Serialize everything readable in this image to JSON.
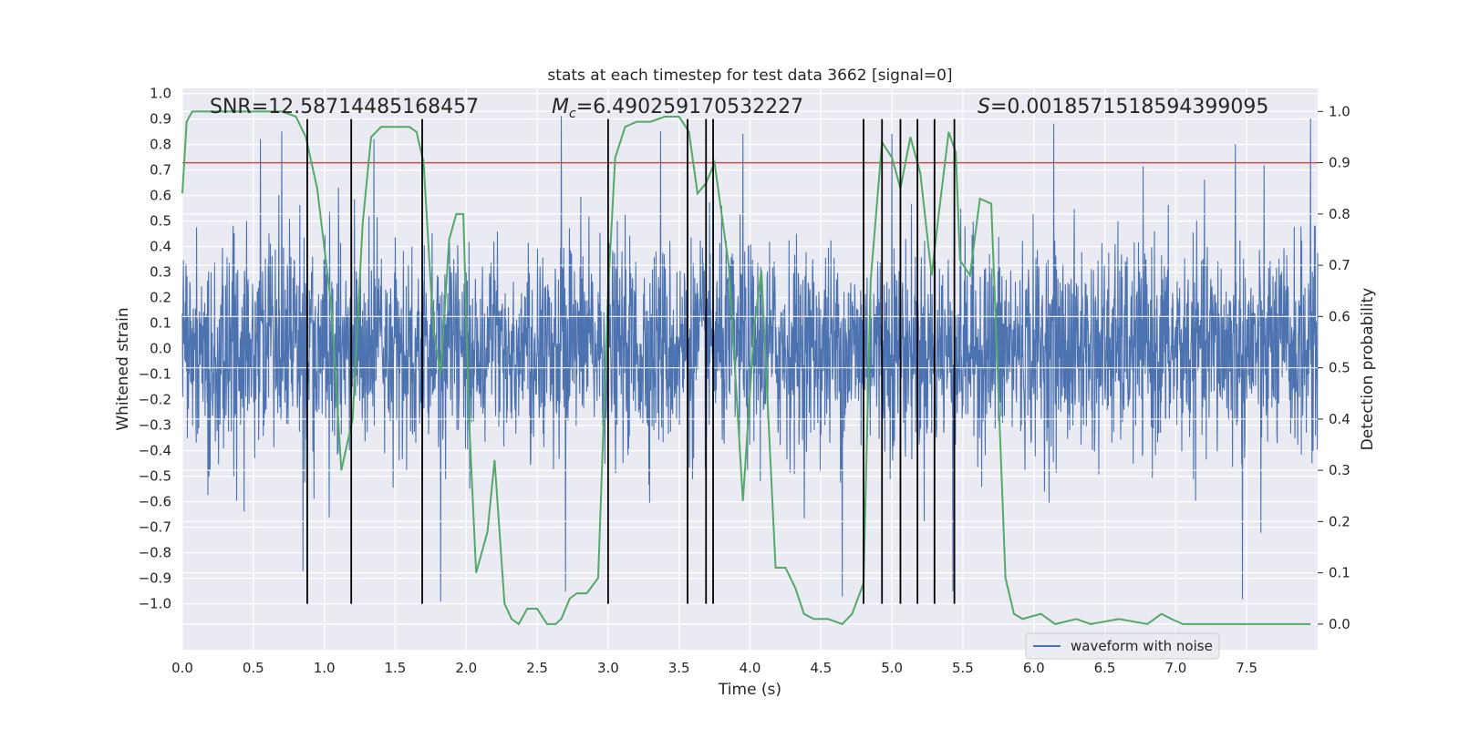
{
  "chart_data": {
    "type": "line",
    "title": "stats at each timestep for test data 3662 [signal=0]",
    "xlabel": "Time (s)",
    "ylabel": "Whitened strain",
    "y2label": "Detection probability",
    "xlim": [
      0,
      8
    ],
    "ylim": [
      -1.18,
      1.02
    ],
    "y2lim": [
      -0.05,
      1.045
    ],
    "xticks": [
      "0.0",
      "0.5",
      "1.0",
      "1.5",
      "2.0",
      "2.5",
      "3.0",
      "3.5",
      "4.0",
      "4.5",
      "5.0",
      "5.5",
      "6.0",
      "6.5",
      "7.0",
      "7.5"
    ],
    "yticks": [
      "1.0",
      "0.9",
      "0.8",
      "0.7",
      "0.6",
      "0.5",
      "0.4",
      "0.3",
      "0.2",
      "0.1",
      "0.0",
      "−0.1",
      "−0.2",
      "−0.3",
      "−0.4",
      "−0.5",
      "−0.6",
      "−0.7",
      "−0.8",
      "−0.9",
      "−1.0"
    ],
    "y2ticks": [
      "0.0",
      "0.1",
      "0.2",
      "0.3",
      "0.4",
      "0.5",
      "0.6",
      "0.7",
      "0.8",
      "0.9",
      "1.0"
    ],
    "grid": true,
    "legend_position": "lower-right",
    "annotations": {
      "snr": "SNR=12.58714485168457",
      "mc_symbol": "M",
      "mc_sub": "c",
      "mc_value": "=6.490259170532227",
      "s_symbol": "S",
      "s_value": "=0.0018571518594399095"
    },
    "series": [
      {
        "name": "waveform with noise",
        "axis": "left",
        "color": "#4c72b0",
        "description_level": "dense noise, bulk within about ±0.4 with spikes up to ±1.0",
        "spikes": [
          [
            0.55,
            0.82
          ],
          [
            0.7,
            0.85
          ],
          [
            0.85,
            -0.87
          ],
          [
            1.1,
            0.63
          ],
          [
            1.35,
            0.82
          ],
          [
            1.82,
            -0.99
          ],
          [
            2.67,
            0.91
          ],
          [
            2.7,
            -0.95
          ],
          [
            3.37,
            0.85
          ],
          [
            3.95,
            0.84
          ],
          [
            4.65,
            -0.97
          ],
          [
            5.0,
            0.84
          ],
          [
            5.43,
            -0.95
          ],
          [
            6.14,
            0.88
          ],
          [
            7.42,
            0.8
          ],
          [
            7.47,
            -0.98
          ],
          [
            7.95,
            0.9
          ],
          [
            7.6,
            -0.72
          ]
        ]
      },
      {
        "name": "",
        "axis": "right",
        "color": "#55a868",
        "x": [
          0,
          0.03,
          0.07,
          0.12,
          0.2,
          0.3,
          0.4,
          0.5,
          0.6,
          0.7,
          0.8,
          0.87,
          0.95,
          1.05,
          1.12,
          1.2,
          1.27,
          1.33,
          1.4,
          1.5,
          1.6,
          1.65,
          1.7,
          1.77,
          1.82,
          1.88,
          1.93,
          1.98,
          2.02,
          2.07,
          2.15,
          2.2,
          2.27,
          2.32,
          2.37,
          2.43,
          2.5,
          2.57,
          2.63,
          2.67,
          2.73,
          2.78,
          2.85,
          2.93,
          3.0,
          3.05,
          3.12,
          3.2,
          3.3,
          3.4,
          3.5,
          3.57,
          3.63,
          3.69,
          3.75,
          3.85,
          3.95,
          4.03,
          4.08,
          4.18,
          4.25,
          4.32,
          4.38,
          4.45,
          4.55,
          4.65,
          4.72,
          4.8,
          4.85,
          4.93,
          5.0,
          5.06,
          5.13,
          5.2,
          5.28,
          5.33,
          5.4,
          5.45,
          5.48,
          5.55,
          5.62,
          5.7,
          5.8,
          5.86,
          5.92,
          6.05,
          6.15,
          6.3,
          6.4,
          6.6,
          6.8,
          6.9,
          6.97,
          7.05,
          7.3,
          7.6,
          7.95
        ],
        "y": [
          0.84,
          0.98,
          1.0,
          1.0,
          1.0,
          1.0,
          1.0,
          1.0,
          1.0,
          1.0,
          0.99,
          0.95,
          0.85,
          0.62,
          0.3,
          0.4,
          0.78,
          0.95,
          0.97,
          0.97,
          0.97,
          0.96,
          0.9,
          0.57,
          0.49,
          0.75,
          0.8,
          0.8,
          0.4,
          0.1,
          0.18,
          0.32,
          0.04,
          0.01,
          0.0,
          0.03,
          0.03,
          0.0,
          0.0,
          0.01,
          0.05,
          0.06,
          0.06,
          0.09,
          0.65,
          0.91,
          0.97,
          0.98,
          0.98,
          0.99,
          0.99,
          0.96,
          0.84,
          0.86,
          0.9,
          0.7,
          0.24,
          0.58,
          0.69,
          0.11,
          0.11,
          0.07,
          0.02,
          0.01,
          0.01,
          0.0,
          0.02,
          0.08,
          0.67,
          0.94,
          0.91,
          0.85,
          0.95,
          0.88,
          0.68,
          0.8,
          0.96,
          0.92,
          0.71,
          0.68,
          0.83,
          0.82,
          0.09,
          0.02,
          0.01,
          0.02,
          0.0,
          0.01,
          0.0,
          0.01,
          0.0,
          0.02,
          0.01,
          0.0,
          0.0,
          0.0,
          0.0
        ]
      }
    ],
    "threshold": {
      "axis": "right",
      "value": 0.9,
      "color": "#c44e52"
    },
    "vlines": {
      "color": "#000000",
      "x": [
        0.88,
        1.19,
        1.69,
        3.0,
        3.56,
        3.69,
        3.74,
        4.8,
        4.93,
        5.06,
        5.18,
        5.3,
        5.44
      ],
      "y_range_left_axis": [
        -1.0,
        0.9
      ]
    }
  }
}
